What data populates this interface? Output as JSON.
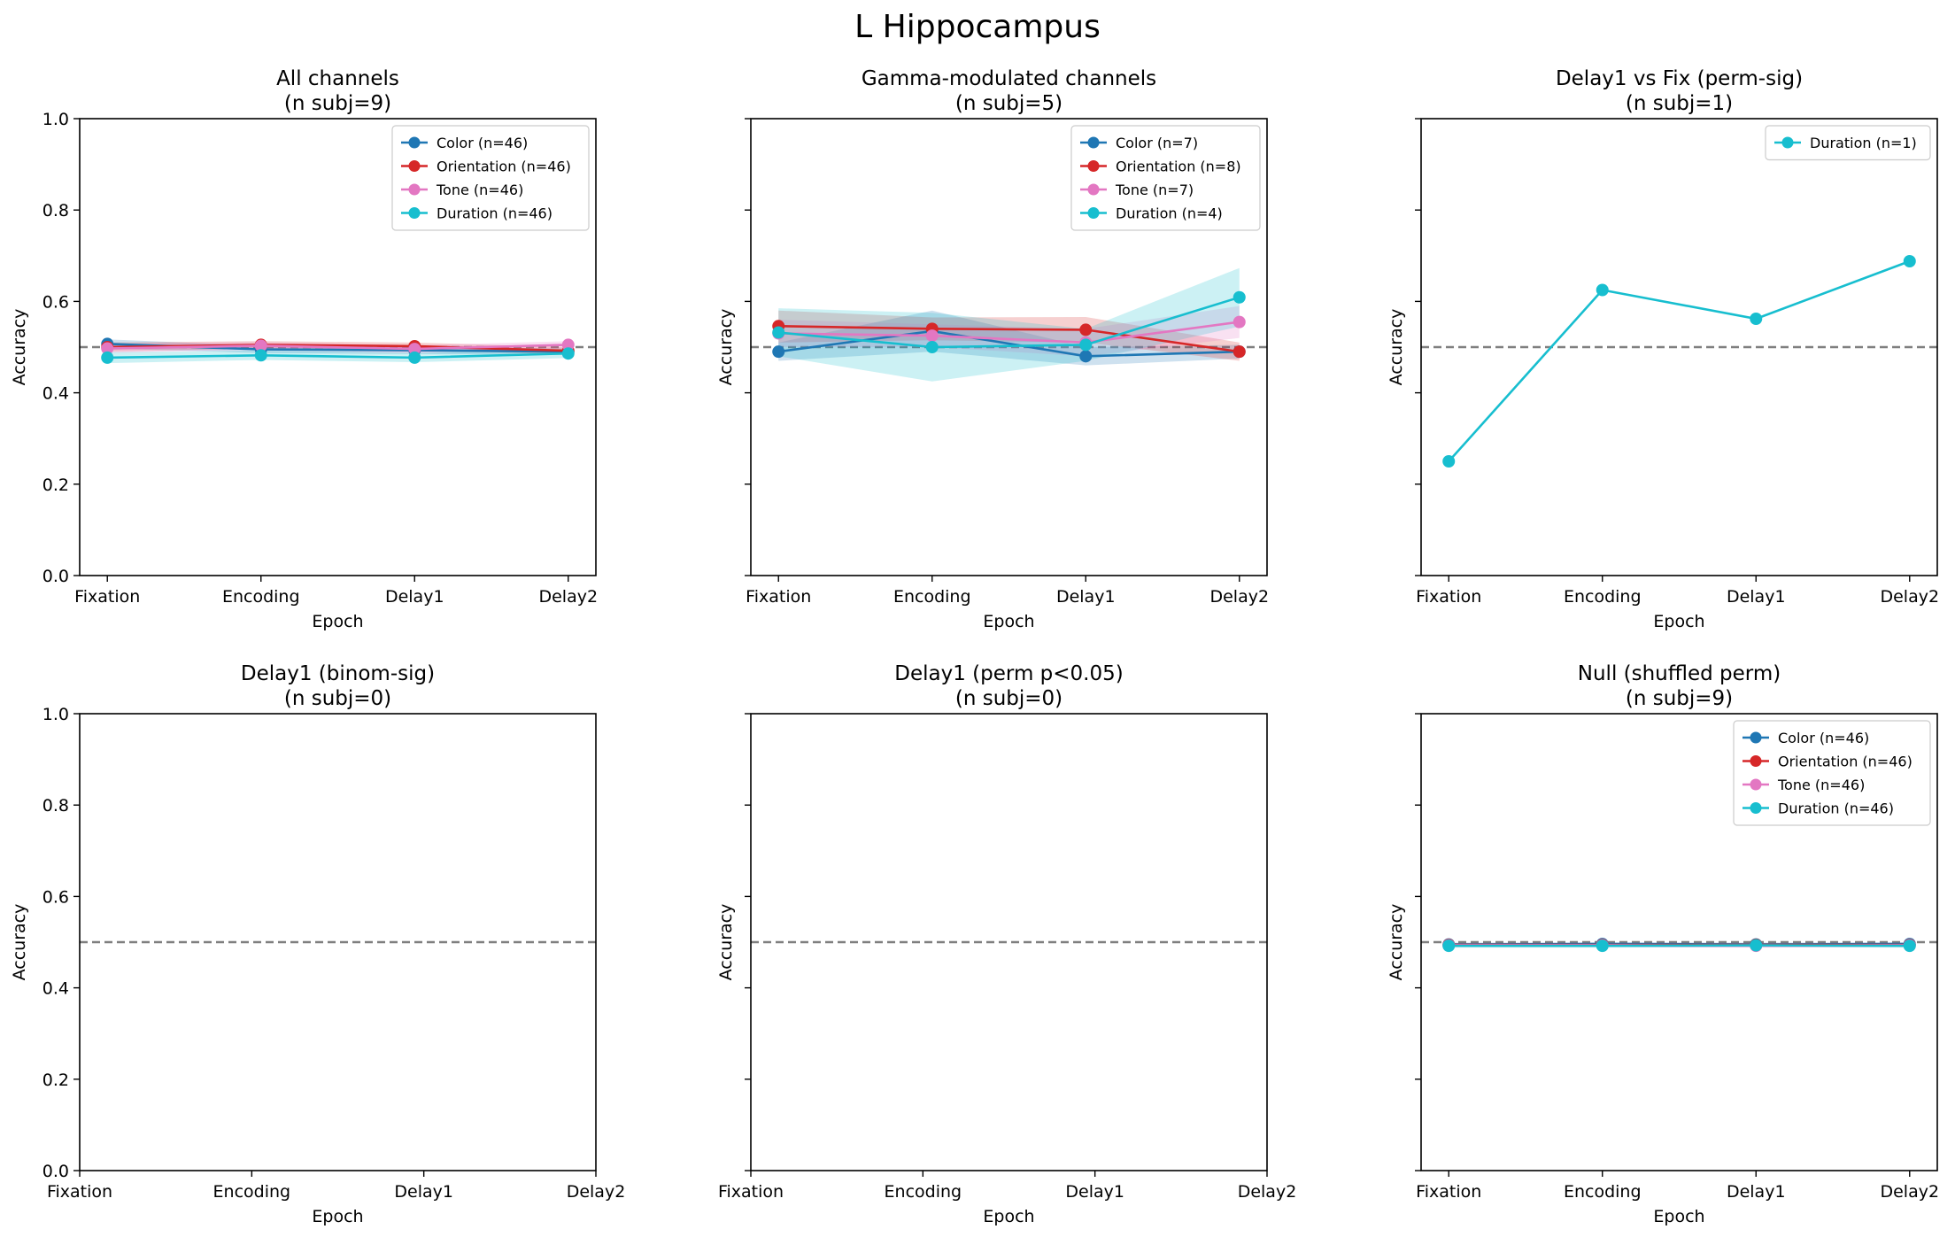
{
  "suptitle": "L Hippocampus",
  "colors": {
    "Color": "#1f77b4",
    "Orientation": "#d62728",
    "Tone": "#e377c2",
    "Duration": "#17becf",
    "chance": "#7f7f7f"
  },
  "chart_data": [
    {
      "type": "line",
      "title": "All channels\n(n subj=9)",
      "xlabel": "Epoch",
      "ylabel": "Accuracy",
      "categories": [
        "Fixation",
        "Encoding",
        "Delay1",
        "Delay2"
      ],
      "ylim": [
        0,
        1
      ],
      "yticks": [
        "0.0",
        "0.2",
        "0.4",
        "0.6",
        "0.8",
        "1.0"
      ],
      "chance": 0.5,
      "legend_position": "top-right",
      "series": [
        {
          "name": "Color (n=46)",
          "key": "Color",
          "values": [
            0.507,
            0.495,
            0.493,
            0.49
          ],
          "lower": [
            0.497,
            0.487,
            0.485,
            0.483
          ],
          "upper": [
            0.517,
            0.503,
            0.501,
            0.497
          ]
        },
        {
          "name": "Orientation (n=46)",
          "key": "Orientation",
          "values": [
            0.5,
            0.505,
            0.502,
            0.492
          ],
          "lower": [
            0.49,
            0.497,
            0.494,
            0.484
          ],
          "upper": [
            0.51,
            0.513,
            0.51,
            0.5
          ]
        },
        {
          "name": "Tone (n=46)",
          "key": "Tone",
          "values": [
            0.497,
            0.503,
            0.496,
            0.505
          ],
          "lower": [
            0.487,
            0.495,
            0.488,
            0.497
          ],
          "upper": [
            0.507,
            0.511,
            0.504,
            0.513
          ]
        },
        {
          "name": "Duration (n=46)",
          "key": "Duration",
          "values": [
            0.477,
            0.482,
            0.477,
            0.486
          ],
          "lower": [
            0.465,
            0.472,
            0.467,
            0.476
          ],
          "upper": [
            0.489,
            0.492,
            0.487,
            0.496
          ]
        }
      ]
    },
    {
      "type": "line",
      "title": "Gamma-modulated channels\n(n subj=5)",
      "xlabel": "Epoch",
      "ylabel": "Accuracy",
      "categories": [
        "Fixation",
        "Encoding",
        "Delay1",
        "Delay2"
      ],
      "ylim": [
        0,
        1
      ],
      "yticks": [],
      "chance": 0.5,
      "legend_position": "top-right",
      "series": [
        {
          "name": "Color (n=7)",
          "key": "Color",
          "values": [
            0.49,
            0.535,
            0.48,
            0.49
          ],
          "lower": [
            0.47,
            0.49,
            0.46,
            0.475
          ],
          "upper": [
            0.51,
            0.58,
            0.5,
            0.505
          ]
        },
        {
          "name": "Orientation (n=8)",
          "key": "Orientation",
          "values": [
            0.546,
            0.54,
            0.538,
            0.49
          ],
          "lower": [
            0.51,
            0.515,
            0.51,
            0.47
          ],
          "upper": [
            0.58,
            0.565,
            0.566,
            0.51
          ]
        },
        {
          "name": "Tone (n=7)",
          "key": "Tone",
          "values": [
            0.53,
            0.525,
            0.51,
            0.555
          ],
          "lower": [
            0.5,
            0.5,
            0.48,
            0.52
          ],
          "upper": [
            0.56,
            0.55,
            0.54,
            0.59
          ]
        },
        {
          "name": "Duration (n=4)",
          "key": "Duration",
          "values": [
            0.532,
            0.5,
            0.505,
            0.609
          ],
          "lower": [
            0.48,
            0.425,
            0.47,
            0.545
          ],
          "upper": [
            0.585,
            0.575,
            0.54,
            0.673
          ]
        }
      ]
    },
    {
      "type": "line",
      "title": "Delay1 vs Fix (perm-sig)\n(n subj=1)",
      "xlabel": "Epoch",
      "ylabel": "Accuracy",
      "categories": [
        "Fixation",
        "Encoding",
        "Delay1",
        "Delay2"
      ],
      "ylim": [
        0,
        1
      ],
      "yticks": [],
      "chance": 0.5,
      "legend_position": "top-right",
      "series": [
        {
          "name": "Duration (n=1)",
          "key": "Duration",
          "values": [
            0.25,
            0.625,
            0.562,
            0.688
          ]
        }
      ]
    },
    {
      "type": "line",
      "title": "Delay1 (binom-sig)\n(n subj=0)",
      "xlabel": "Epoch",
      "ylabel": "Accuracy",
      "categories": [
        "Fixation",
        "Encoding",
        "Delay1",
        "Delay2"
      ],
      "ylim": [
        0,
        1
      ],
      "yticks": [
        "0.0",
        "0.2",
        "0.4",
        "0.6",
        "0.8",
        "1.0"
      ],
      "chance": 0.5,
      "series": []
    },
    {
      "type": "line",
      "title": "Delay1 (perm p<0.05)\n(n subj=0)",
      "xlabel": "Epoch",
      "ylabel": "Accuracy",
      "categories": [
        "Fixation",
        "Encoding",
        "Delay1",
        "Delay2"
      ],
      "ylim": [
        0,
        1
      ],
      "yticks": [],
      "chance": 0.5,
      "series": []
    },
    {
      "type": "line",
      "title": "Null (shuffled perm)\n(n subj=9)",
      "xlabel": "Epoch",
      "ylabel": "Accuracy",
      "categories": [
        "Fixation",
        "Encoding",
        "Delay1",
        "Delay2"
      ],
      "ylim": [
        0,
        1
      ],
      "yticks": [],
      "chance": 0.5,
      "legend_position": "top-right",
      "series": [
        {
          "name": "Color (n=46)",
          "key": "Color",
          "values": [
            0.495,
            0.496,
            0.495,
            0.496
          ],
          "lower": [
            0.491,
            0.492,
            0.491,
            0.492
          ],
          "upper": [
            0.499,
            0.5,
            0.499,
            0.5
          ]
        },
        {
          "name": "Orientation (n=46)",
          "key": "Orientation",
          "values": [
            0.494,
            0.494,
            0.494,
            0.494
          ],
          "lower": [
            0.49,
            0.49,
            0.49,
            0.49
          ],
          "upper": [
            0.498,
            0.498,
            0.498,
            0.498
          ]
        },
        {
          "name": "Tone (n=46)",
          "key": "Tone",
          "values": [
            0.493,
            0.493,
            0.492,
            0.493
          ],
          "lower": [
            0.489,
            0.489,
            0.488,
            0.489
          ],
          "upper": [
            0.497,
            0.497,
            0.496,
            0.497
          ]
        },
        {
          "name": "Duration (n=46)",
          "key": "Duration",
          "values": [
            0.492,
            0.492,
            0.493,
            0.492
          ],
          "lower": [
            0.488,
            0.488,
            0.489,
            0.488
          ],
          "upper": [
            0.496,
            0.496,
            0.497,
            0.496
          ]
        }
      ]
    }
  ]
}
